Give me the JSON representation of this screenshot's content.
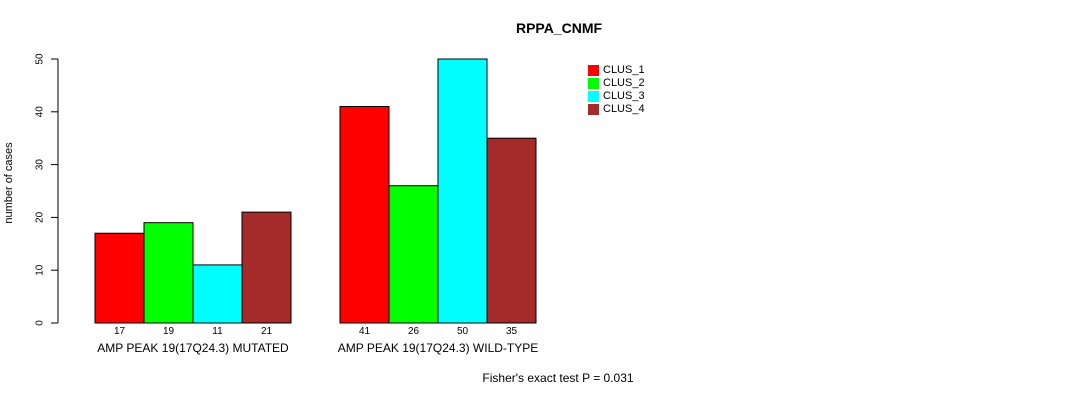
{
  "chart_data": {
    "type": "bar",
    "title": "RPPA_CNMF",
    "ylabel": "number of cases",
    "xlabel": "",
    "ylim": [
      0,
      50
    ],
    "yticks": [
      0,
      10,
      20,
      30,
      40,
      50
    ],
    "grid": false,
    "legend_position": "top-right",
    "categories": [
      "AMP PEAK 19(17Q24.3) MUTATED",
      "AMP PEAK 19(17Q24.3) WILD-TYPE"
    ],
    "series": [
      {
        "name": "CLUS_1",
        "color": "#ff0000",
        "values": [
          17,
          41
        ]
      },
      {
        "name": "CLUS_2",
        "color": "#00ff00",
        "values": [
          19,
          26
        ]
      },
      {
        "name": "CLUS_3",
        "color": "#00ffff",
        "values": [
          11,
          50
        ]
      },
      {
        "name": "CLUS_4",
        "color": "#a52a2a",
        "values": [
          21,
          35
        ]
      }
    ],
    "bar_value_labels": [
      17,
      19,
      11,
      21,
      41,
      26,
      50,
      35
    ],
    "annotation": "Fisher's exact test P = 0.031"
  }
}
